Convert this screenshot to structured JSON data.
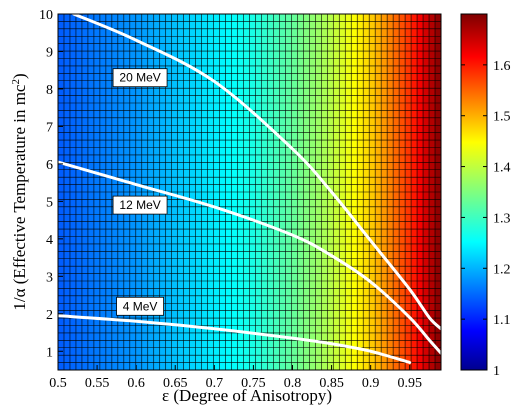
{
  "chart_data": {
    "type": "heatmap",
    "xlabel_symbol": "ε",
    "xlabel_text": "(Degree of Anisotropy)",
    "ylabel_symbol": "1/α",
    "ylabel_text": "(Effective Temperature in mc",
    "ylabel_sup": "2",
    "ylabel_close": ")",
    "xlim": [
      0.5,
      0.99
    ],
    "ylim": [
      0.5,
      10
    ],
    "x_ticks": [
      "0.5",
      "0.55",
      "0.6",
      "0.65",
      "0.7",
      "0.75",
      "0.8",
      "0.85",
      "0.9",
      "0.95"
    ],
    "y_ticks": [
      "1",
      "2",
      "3",
      "4",
      "5",
      "6",
      "7",
      "8",
      "9",
      "10"
    ],
    "colorbar": {
      "range": [
        1.0,
        1.7
      ],
      "ticks": [
        "1",
        "1.1",
        "1.2",
        "1.3",
        "1.4",
        "1.5",
        "1.6"
      ]
    },
    "colorscale": "jet",
    "field_note_values": {
      "value_at_x": [
        [
          0.5,
          1.15
        ],
        [
          0.55,
          1.17
        ],
        [
          0.6,
          1.19
        ],
        [
          0.65,
          1.22
        ],
        [
          0.7,
          1.25
        ],
        [
          0.75,
          1.28
        ],
        [
          0.8,
          1.33
        ],
        [
          0.85,
          1.39
        ],
        [
          0.9,
          1.47
        ],
        [
          0.95,
          1.58
        ],
        [
          0.99,
          1.7
        ]
      ]
    },
    "contours": [
      {
        "label": "20 MeV",
        "label_at": [
          0.605,
          8.3
        ],
        "points": [
          [
            0.52,
            10
          ],
          [
            0.6,
            9.3
          ],
          [
            0.7,
            8.2
          ],
          [
            0.8,
            6.4
          ],
          [
            0.85,
            5.25
          ],
          [
            0.9,
            3.95
          ],
          [
            0.95,
            2.65
          ],
          [
            0.975,
            1.9
          ],
          [
            0.99,
            1.6
          ]
        ]
      },
      {
        "label": "12 MeV",
        "label_at": [
          0.605,
          4.9
        ],
        "points": [
          [
            0.5,
            6.05
          ],
          [
            0.6,
            5.45
          ],
          [
            0.7,
            4.85
          ],
          [
            0.8,
            4.1
          ],
          [
            0.85,
            3.55
          ],
          [
            0.9,
            2.85
          ],
          [
            0.95,
            1.9
          ],
          [
            0.975,
            1.3
          ],
          [
            0.99,
            0.95
          ]
        ]
      },
      {
        "label": "4 MeV",
        "label_at": [
          0.605,
          2.2
        ],
        "points": [
          [
            0.5,
            1.95
          ],
          [
            0.6,
            1.8
          ],
          [
            0.7,
            1.6
          ],
          [
            0.8,
            1.35
          ],
          [
            0.85,
            1.2
          ],
          [
            0.9,
            1.0
          ],
          [
            0.95,
            0.7
          ]
        ]
      }
    ],
    "grid": true
  }
}
